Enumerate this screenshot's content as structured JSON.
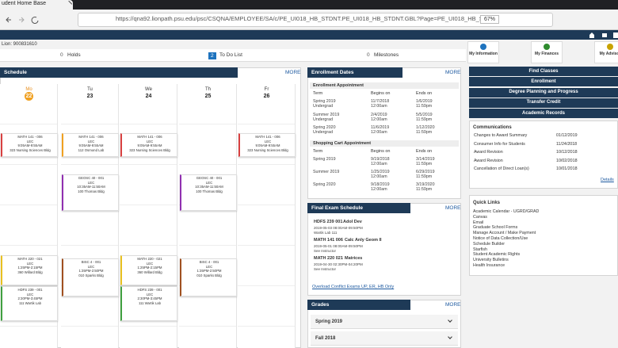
{
  "browser": {
    "tab_title": "udent Home Base",
    "url": "https://qna92.lionpath.psu.edu/psc/CSQNA/EMPLOYEE/SA/c/PE_UI018_HB_STDNT.PE_UI018_HB_STDNT.GBL?Page=PE_UI018_HB_STDNT...",
    "zoom": "67%"
  },
  "header": {
    "lion_id": "Lion: 900831610",
    "tabs": [
      {
        "count": "0",
        "label": "Holds"
      },
      {
        "count": "2",
        "label": "To Do List"
      },
      {
        "count": "0",
        "label": "Milestones"
      }
    ],
    "icons": [
      "My Information",
      "My Finances",
      "My Advisor"
    ]
  },
  "schedule": {
    "title": "Schedule",
    "more": "MORE",
    "days": [
      {
        "day": "Mo",
        "date": "22",
        "events": [
          [
            "MATH 141 - 006",
            "LEC",
            "9:05AM-9:55AM",
            "323 Nursing Sciences Bldg"
          ],
          [
            "MATH 220 - 021",
            "LEC",
            "1:25PM-2:15PM",
            "360 Willard Bldg"
          ],
          [
            "HDFS 239 - 001",
            "LEC",
            "2:30PM-3:45PM",
            "111 Wartik Lab"
          ]
        ]
      },
      {
        "day": "Tu",
        "date": "23",
        "events": [
          [
            "MATH 141 - 006",
            "LEC",
            "9:05AM-9:55AM",
            "112 Osmond Lab"
          ],
          [
            "GEOSC 40 - 001",
            "LEC",
            "10:35AM-11:50AM",
            "100 Thomas Bldg"
          ],
          [
            "BISC 4 - 001",
            "LEC",
            "1:35PM-2:50PM",
            "010 Sparks Bldg"
          ]
        ]
      },
      {
        "day": "We",
        "date": "24",
        "events": [
          [
            "MATH 141 - 006",
            "LEC",
            "9:05AM-9:55AM",
            "323 Nursing Sciences Bldg"
          ],
          [
            "MATH 220 - 021",
            "LEC",
            "1:25PM-2:15PM",
            "360 Willard Bldg"
          ],
          [
            "HDFS 239 - 001",
            "LEC",
            "2:30PM-3:45PM",
            "111 Wartik Lab"
          ]
        ]
      },
      {
        "day": "Th",
        "date": "25",
        "events": [
          [
            "GEOSC 40 - 001",
            "LEC",
            "10:35AM-11:50AM",
            "100 Thomas Bldg"
          ],
          [
            "BISC 4 - 001",
            "LEC",
            "1:35PM-2:50PM",
            "010 Sparks Bldg"
          ]
        ]
      },
      {
        "day": "Fr",
        "date": "26",
        "events": [
          [
            "MATH 141 - 006",
            "LEC",
            "9:05AM-9:55AM",
            "323 Nursing Sciences Bldg"
          ]
        ]
      }
    ]
  },
  "enrollment": {
    "title": "Enrollment Dates",
    "more": "MORE",
    "sections": [
      {
        "title": "Enrollment Appointment",
        "columns": [
          "Term",
          "Begins on",
          "Ends on"
        ],
        "rows": [
          [
            [
              "Spring 2019",
              "Undergrad"
            ],
            [
              "11/7/2018",
              "12:00am"
            ],
            [
              "1/6/2019",
              "11:59pm"
            ]
          ],
          [
            [
              "Summer 2019",
              "Undergrad"
            ],
            [
              "2/4/2019",
              "12:00am"
            ],
            [
              "5/5/2019",
              "11:59pm"
            ]
          ],
          [
            [
              "Spring 2020",
              "Undergrad"
            ],
            [
              "11/6/2019",
              "12:00am"
            ],
            [
              "1/12/2020",
              "11:59pm"
            ]
          ]
        ]
      },
      {
        "title": "Shopping Cart Appointment",
        "columns": [
          "Term",
          "Begins on",
          "Ends on"
        ],
        "rows": [
          [
            [
              "Spring 2019"
            ],
            [
              "9/19/2018",
              "12:00am"
            ],
            [
              "3/14/2019",
              "11:59pm"
            ]
          ],
          [
            [
              "Summer 2019"
            ],
            [
              "1/25/2019",
              "12:00am"
            ],
            [
              "6/29/2019",
              "11:59pm"
            ]
          ],
          [
            [
              "Spring 2020"
            ],
            [
              "9/18/2019",
              "12:00am"
            ],
            [
              "3/19/2020",
              "11:59pm"
            ]
          ]
        ]
      }
    ]
  },
  "final_exams": {
    "title": "Final Exam Schedule",
    "more": "MORE",
    "exams": [
      {
        "course": "HDFS 239 001",
        "name": "Adol Dev",
        "time": "2019-05-03 08:00AM-09:50PM",
        "location": "Wartik Lab 111"
      },
      {
        "course": "MATH 141 006",
        "name": "Calc Anly Geom II",
        "time": "2019-05-01 08:00AM-09:50PM",
        "location": "See Instructor"
      },
      {
        "course": "MATH 220 021",
        "name": "Matrices",
        "time": "2019-04-30 02:30PM-04:20PM",
        "location": "See Instructor"
      }
    ],
    "link": "Overload Conflict Exams UP, ER, HB Only"
  },
  "grades": {
    "title": "Grades",
    "more": "MORE",
    "terms": [
      "Spring 2019",
      "Fall 2018"
    ]
  },
  "actions": [
    "Find Classes",
    "Enrollment",
    "Degree Planning and Progress",
    "Transfer Credit",
    "Academic Records"
  ],
  "communications": {
    "title": "Communications",
    "items": [
      [
        "Changes to Award Summary",
        "01/12/2019"
      ],
      [
        "Consumer Info for Students",
        "11/24/2018"
      ],
      [
        "Award Revision",
        "10/12/2018"
      ],
      [
        "Award Revision",
        "10/02/2018"
      ],
      [
        "Cancellation of Direct Loan(s)",
        "10/01/2018"
      ]
    ],
    "details": "Details"
  },
  "quick_links": {
    "title": "Quick Links",
    "items": [
      "Academic Calendar - UGRD/GRAD",
      "Canvas",
      "Email",
      "Graduate School Forms",
      "Manage Account / Make Payment",
      "Notice of Data Collection/Use",
      "Schedule Builder",
      "Starfish",
      "Student Academic Rights",
      "University Bulletins",
      "Health Insurance"
    ]
  }
}
